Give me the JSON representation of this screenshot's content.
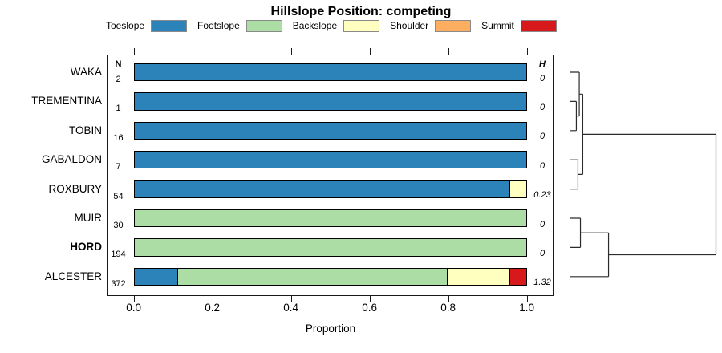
{
  "title": "Hillslope Position: competing",
  "legend": {
    "items": [
      {
        "label": "Toeslope",
        "color": "#2B83BA"
      },
      {
        "label": "Footslope",
        "color": "#ABDDA4"
      },
      {
        "label": "Backslope",
        "color": "#FFFFBF"
      },
      {
        "label": "Shoulder",
        "color": "#FDAE61"
      },
      {
        "label": "Summit",
        "color": "#D7191C"
      }
    ]
  },
  "table": {
    "n_header": "N",
    "h_header": "H"
  },
  "rows": [
    {
      "name": "WAKA",
      "n": "2",
      "h": "0",
      "bold": false
    },
    {
      "name": "TREMENTINA",
      "n": "1",
      "h": "0",
      "bold": false
    },
    {
      "name": "TOBIN",
      "n": "16",
      "h": "0",
      "bold": false
    },
    {
      "name": "GABALDON",
      "n": "7",
      "h": "0",
      "bold": false
    },
    {
      "name": "ROXBURY",
      "n": "54",
      "h": "0.23",
      "bold": false
    },
    {
      "name": "MUIR",
      "n": "30",
      "h": "0",
      "bold": false
    },
    {
      "name": "HORD",
      "n": "194",
      "h": "0",
      "bold": true
    },
    {
      "name": "ALCESTER",
      "n": "372",
      "h": "1.32",
      "bold": false
    }
  ],
  "x_axis": {
    "label": "Proportion",
    "tick_labels": [
      "0.0",
      "0.2",
      "0.4",
      "0.6",
      "0.8",
      "1.0"
    ]
  },
  "chart_data": {
    "type": "bar",
    "orientation": "horizontal",
    "stacked": true,
    "title": "Hillslope Position: competing",
    "xlabel": "Proportion",
    "xlim": [
      0,
      1
    ],
    "xticks": [
      0.0,
      0.2,
      0.4,
      0.6,
      0.8,
      1.0
    ],
    "grid": false,
    "legend_position": "top",
    "categories": [
      "WAKA",
      "TREMENTINA",
      "TOBIN",
      "GABALDON",
      "ROXBURY",
      "MUIR",
      "HORD",
      "ALCESTER"
    ],
    "n_obs": [
      2,
      1,
      16,
      7,
      54,
      30,
      194,
      372
    ],
    "shannon_h": [
      0,
      0,
      0,
      0,
      0.23,
      0,
      0,
      1.32
    ],
    "series": [
      {
        "name": "Toeslope",
        "color": "#2B83BA",
        "values": [
          1,
          1,
          1,
          1,
          0.96,
          0,
          0,
          0.11
        ]
      },
      {
        "name": "Footslope",
        "color": "#ABDDA4",
        "values": [
          0,
          0,
          0,
          0,
          0,
          1,
          1,
          0.69
        ]
      },
      {
        "name": "Backslope",
        "color": "#FFFFBF",
        "values": [
          0,
          0,
          0,
          0,
          0.04,
          0,
          0,
          0.16
        ]
      },
      {
        "name": "Shoulder",
        "color": "#FDAE61",
        "values": [
          0,
          0,
          0,
          0,
          0,
          0,
          0,
          0
        ]
      },
      {
        "name": "Summit",
        "color": "#D7191C",
        "values": [
          0,
          0,
          0,
          0,
          0,
          0,
          0,
          0.04
        ]
      }
    ],
    "dendrogram": {
      "position": "right",
      "leaves": [
        "WAKA",
        "TREMENTINA",
        "TOBIN",
        "GABALDON",
        "ROXBURY",
        "MUIR",
        "HORD",
        "ALCESTER"
      ],
      "merges": [
        {
          "id": "m1",
          "children": [
            "TREMENTINA",
            "TOBIN"
          ],
          "rel_height": 0.041
        },
        {
          "id": "m2",
          "children": [
            "WAKA",
            "m1"
          ],
          "rel_height": 0.061
        },
        {
          "id": "m3",
          "children": [
            "GABALDON",
            "ROXBURY"
          ],
          "rel_height": 0.052
        },
        {
          "id": "m4",
          "children": [
            "m2",
            "m3"
          ],
          "rel_height": 0.085
        },
        {
          "id": "m5",
          "children": [
            "MUIR",
            "HORD"
          ],
          "rel_height": 0.069
        },
        {
          "id": "m6",
          "children": [
            "m5",
            "ALCESTER"
          ],
          "rel_height": 0.262
        },
        {
          "id": "root",
          "children": [
            "m4",
            "m6"
          ],
          "rel_height": 1.0
        }
      ]
    }
  }
}
